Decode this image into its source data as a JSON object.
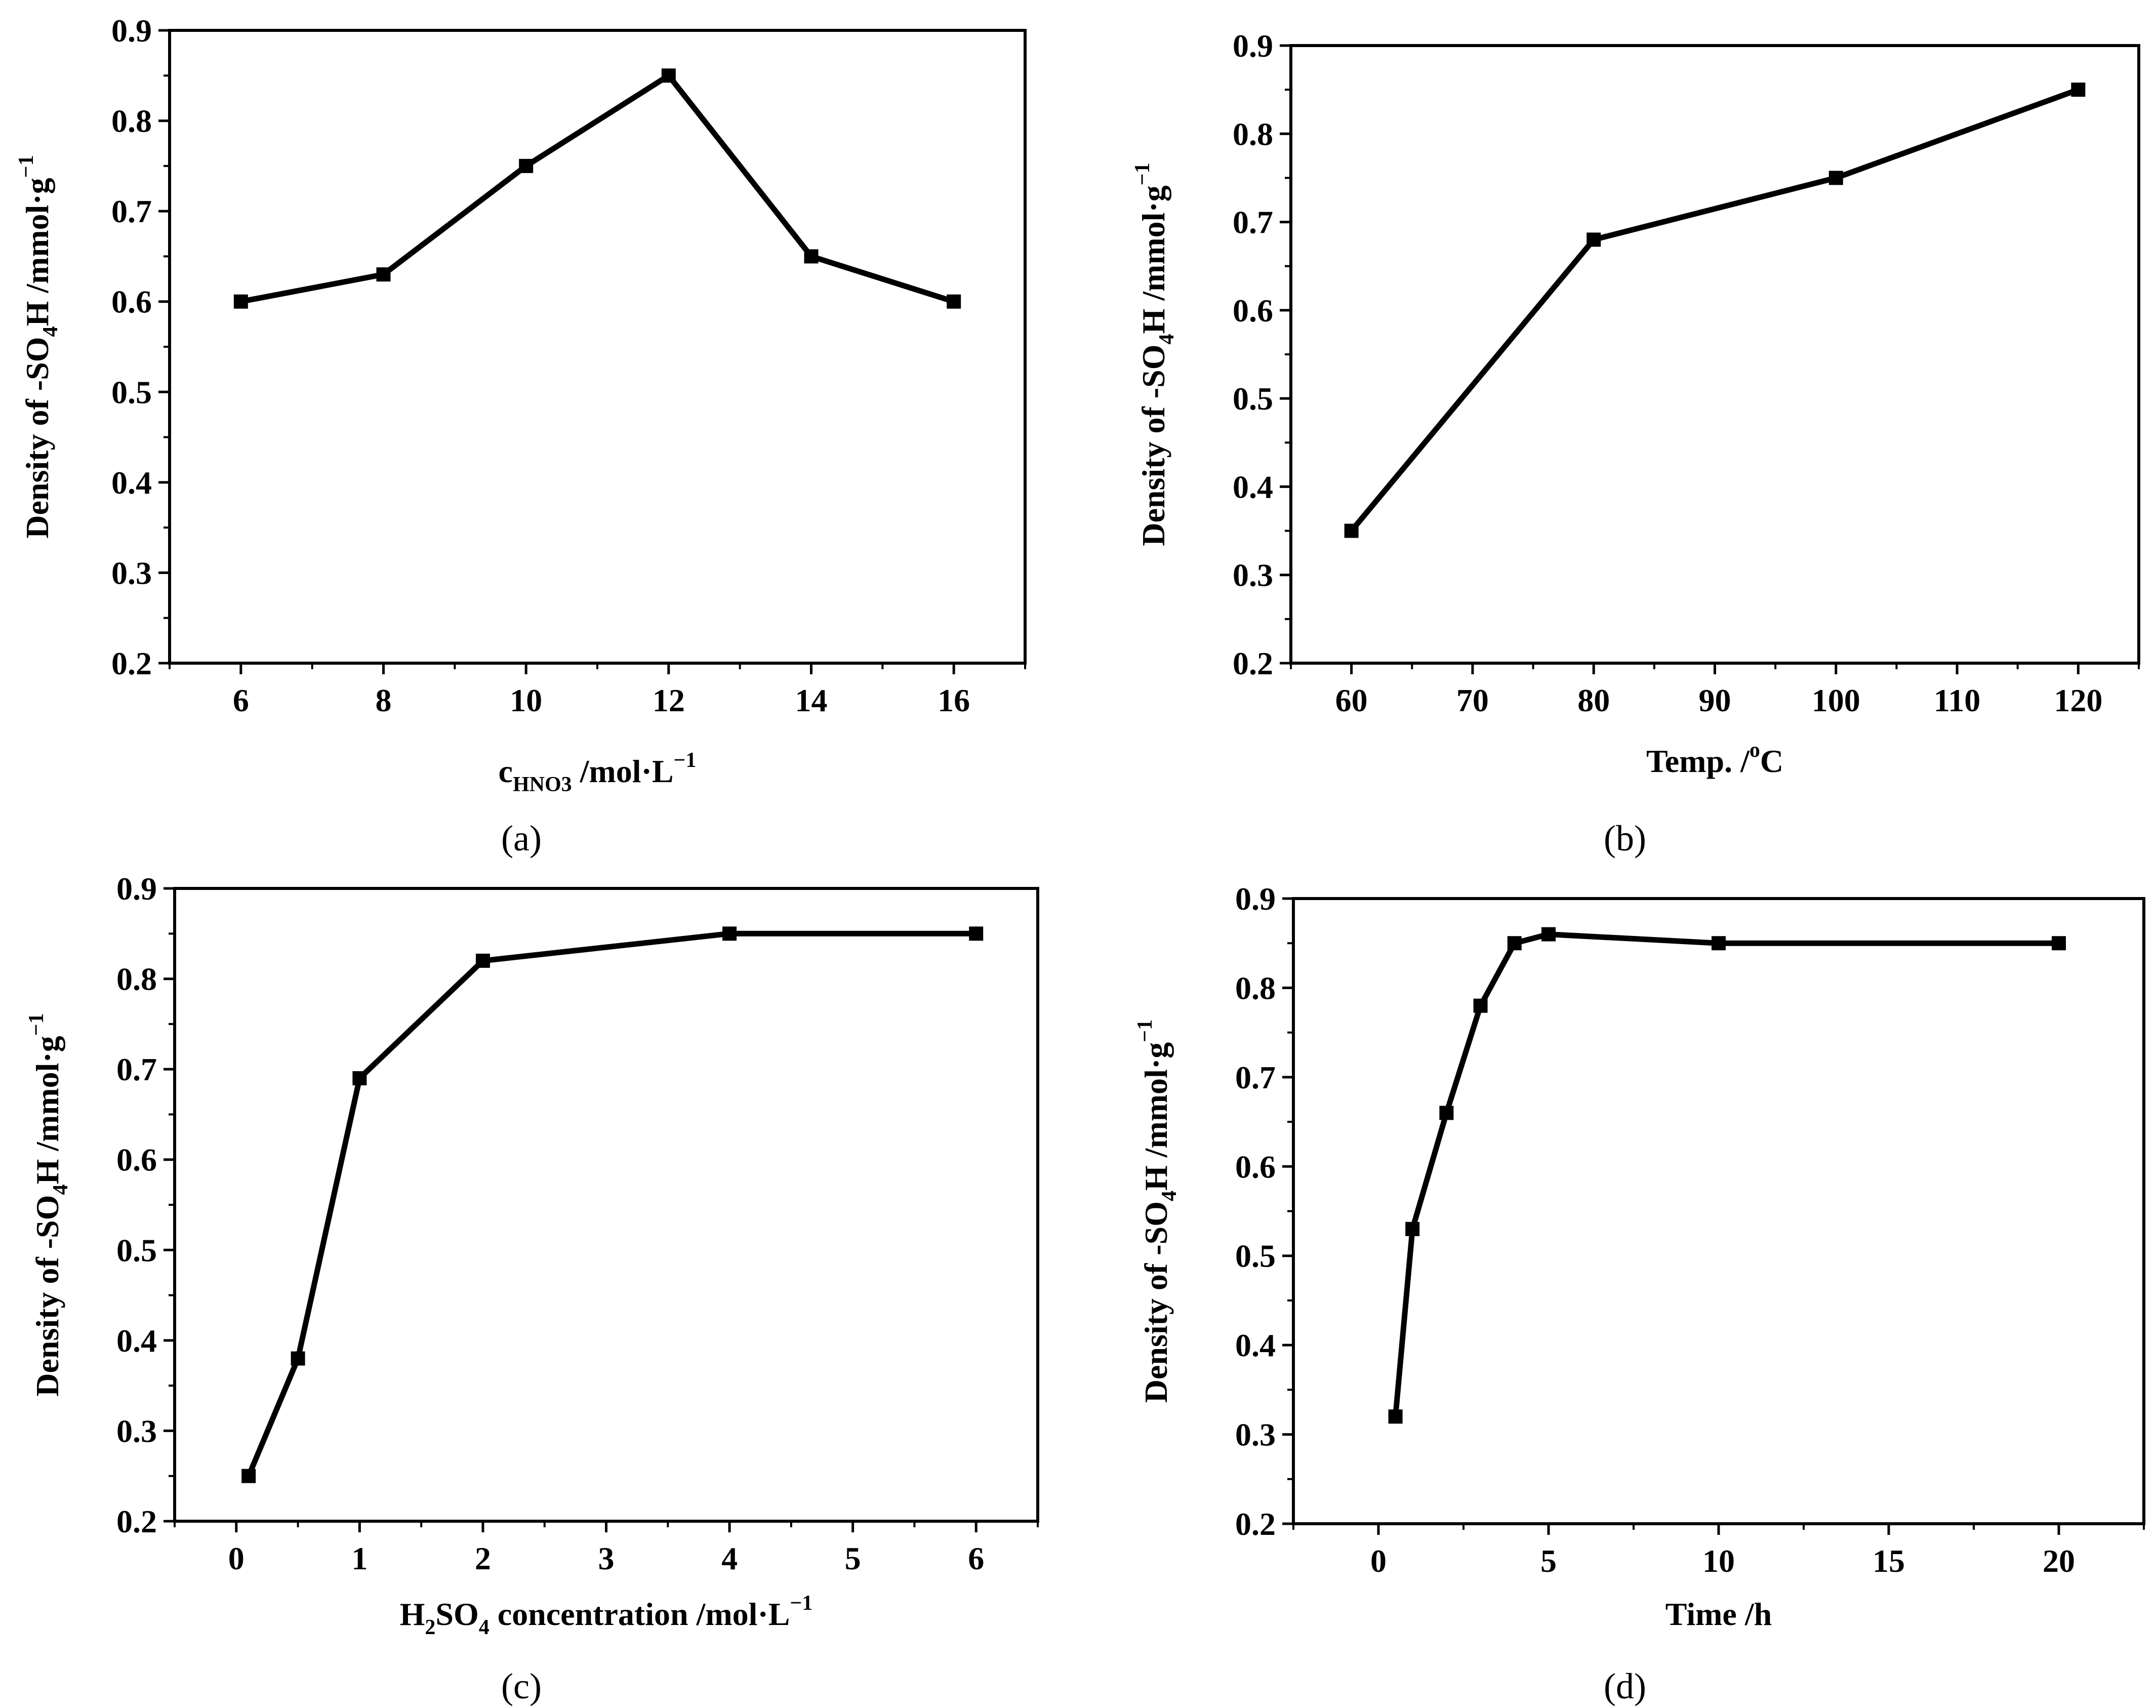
{
  "chart_data": [
    {
      "id": "a",
      "type": "line",
      "caption": "(a)",
      "x": [
        6,
        8,
        10,
        12,
        14,
        16
      ],
      "values": [
        0.6,
        0.63,
        0.75,
        0.85,
        0.65,
        0.6
      ],
      "xlim": [
        5,
        17
      ],
      "ylim": [
        0.2,
        0.9
      ],
      "xticks": [
        "6",
        "8",
        "10",
        "12",
        "14",
        "16"
      ],
      "yticks": [
        "0.2",
        "0.3",
        "0.4",
        "0.5",
        "0.6",
        "0.7",
        "0.8",
        "0.9"
      ],
      "xlabel": {
        "main": "c",
        "sub": "HNO3",
        "rest": " /mol·L",
        "sup": "−1"
      },
      "ylabel": {
        "pre": "Density of -SO",
        "sub": "4",
        "mid": "H /mmol·g",
        "sup": "−1"
      }
    },
    {
      "id": "b",
      "type": "line",
      "caption": "(b)",
      "x": [
        60,
        80,
        100,
        120
      ],
      "values": [
        0.35,
        0.68,
        0.75,
        0.85
      ],
      "xlim": [
        55,
        125
      ],
      "ylim": [
        0.2,
        0.9
      ],
      "xticks": [
        "60",
        "70",
        "80",
        "90",
        "100",
        "110",
        "120"
      ],
      "yticks": [
        "0.2",
        "0.3",
        "0.4",
        "0.5",
        "0.6",
        "0.7",
        "0.8",
        "0.9"
      ],
      "xlabel": {
        "main": "Temp. /",
        "sup": "o",
        "rest": "C"
      },
      "ylabel": {
        "pre": "Density of -SO",
        "sub": "4",
        "mid": "H /mmol·g",
        "sup": "−1"
      }
    },
    {
      "id": "c",
      "type": "line",
      "caption": "(c)",
      "x": [
        0.1,
        0.5,
        1,
        2,
        4,
        6
      ],
      "values": [
        0.25,
        0.38,
        0.69,
        0.82,
        0.85,
        0.85
      ],
      "xlim": [
        -0.5,
        6.5
      ],
      "ylim": [
        0.2,
        0.9
      ],
      "xticks": [
        "0",
        "1",
        "2",
        "3",
        "4",
        "5",
        "6"
      ],
      "yticks": [
        "0.2",
        "0.3",
        "0.4",
        "0.5",
        "0.6",
        "0.7",
        "0.8",
        "0.9"
      ],
      "xlabel": {
        "pre": "H",
        "sub1": "2",
        "mid": "SO",
        "sub2": "4",
        "rest": " concentration /mol·L",
        "sup": "−1"
      },
      "ylabel": {
        "pre": "Density of -SO",
        "sub": "4",
        "mid": "H /mmol·g",
        "sup": "−1"
      }
    },
    {
      "id": "d",
      "type": "line",
      "caption": "(d)",
      "x": [
        0.5,
        1,
        2,
        3,
        4,
        5,
        10,
        20
      ],
      "values": [
        0.32,
        0.53,
        0.66,
        0.78,
        0.85,
        0.86,
        0.85,
        0.85
      ],
      "xlim": [
        -2.5,
        22.5
      ],
      "ylim": [
        0.2,
        0.9
      ],
      "xticks": [
        "0",
        "5",
        "10",
        "15",
        "20"
      ],
      "yticks": [
        "0.2",
        "0.3",
        "0.4",
        "0.5",
        "0.6",
        "0.7",
        "0.8",
        "0.9"
      ],
      "xlabel": {
        "main": "Time /h"
      },
      "ylabel": {
        "pre": "Density of -SO",
        "sub": "4",
        "mid": "H /mmol·g",
        "sup": "−1"
      }
    }
  ]
}
